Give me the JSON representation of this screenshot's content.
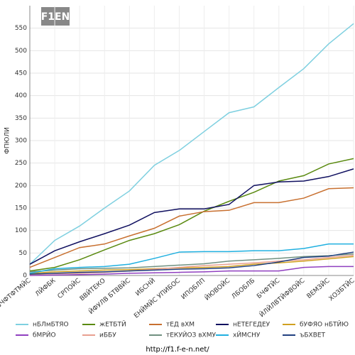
{
  "chart_data": {
    "type": "line",
    "logo": "F1EN",
    "y_label": "ФПЮЛИ",
    "footer": "http://f1.f-e-n.net/",
    "categories": [
      "БЧФТФТМЙС",
      "ЛЙФБК",
      "СРПОЙС",
      "ВВЙТЕКО",
      "ЙФУЛВ БТВВЙС",
      "ИБСНЙ",
      "ЕНЙМЙС УПИБОС",
      "ИПОБЛП",
      "ЙЮВОЙС",
      "ЛБОБЛБ",
      "БЧФТЙС",
      "ЙЛЙЛВТЙФВОЙС",
      "ВЕМЗЙС",
      "ХОЗБТЙС"
    ],
    "ylim": [
      0,
      600
    ],
    "yticks": [
      0,
      50,
      100,
      150,
      200,
      250,
      300,
      350,
      400,
      450,
      500,
      550
    ],
    "grid": true,
    "series": [
      {
        "name": "нБЛмБТЯО",
        "color": "#7fd0e0",
        "values": [
          25,
          78,
          110,
          150,
          188,
          245,
          278,
          320,
          362,
          375,
          418,
          460,
          515,
          560
        ]
      },
      {
        "name": "жЕТБТЙ",
        "color": "#5a8a10",
        "values": [
          10,
          18,
          35,
          57,
          78,
          93,
          113,
          143,
          165,
          185,
          210,
          222,
          248,
          260
        ]
      },
      {
        "name": "тЕД вХМ",
        "color": "#c87030",
        "values": [
          18,
          40,
          62,
          70,
          88,
          105,
          132,
          142,
          145,
          162,
          162,
          172,
          193,
          195
        ]
      },
      {
        "name": "нЕТЕГЕДЕУ",
        "color": "#101060",
        "values": [
          25,
          55,
          75,
          93,
          112,
          140,
          148,
          148,
          158,
          200,
          208,
          210,
          220,
          237
        ]
      },
      {
        "name": "бУФЯО нБТЙЮ",
        "color": "#d0a020",
        "values": [
          5,
          8,
          10,
          12,
          13,
          15,
          17,
          18,
          20,
          25,
          28,
          32,
          37,
          42
        ]
      },
      {
        "name": "бМРЙО",
        "color": "#9040c0",
        "values": [
          0,
          1,
          2,
          3,
          5,
          6,
          7,
          8,
          10,
          10,
          10,
          18,
          20,
          20
        ]
      },
      {
        "name": "иББУ",
        "color": "#e8a090",
        "values": [
          2,
          4,
          5,
          7,
          10,
          14,
          18,
          22,
          25,
          28,
          32,
          35,
          40,
          45
        ]
      },
      {
        "name": "тЕКУЙОЗ вХМУ",
        "color": "#709080",
        "values": [
          8,
          12,
          15,
          16,
          17,
          20,
          23,
          26,
          32,
          35,
          38,
          42,
          44,
          48
        ]
      },
      {
        "name": "хЙМСНУ",
        "color": "#20b0e0",
        "values": [
          5,
          15,
          18,
          20,
          25,
          38,
          52,
          53,
          53,
          55,
          55,
          60,
          70,
          70
        ]
      },
      {
        "name": "ъБХВЕТ",
        "color": "#204080",
        "values": [
          3,
          5,
          7,
          8,
          10,
          12,
          14,
          15,
          17,
          22,
          30,
          40,
          43,
          52
        ]
      }
    ]
  }
}
